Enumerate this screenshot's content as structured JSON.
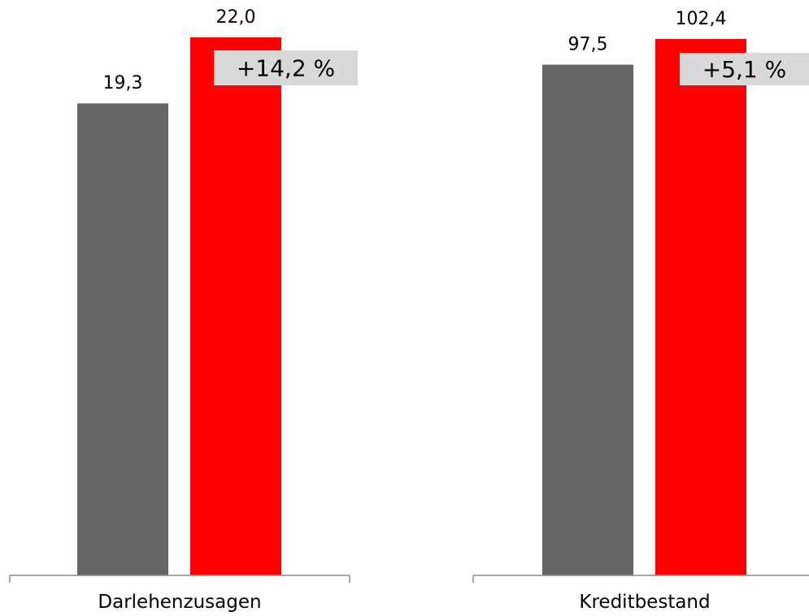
{
  "chart_data": [
    {
      "type": "bar",
      "category": "Darlehenzusagen",
      "values": [
        19.3,
        22.0
      ],
      "value_labels": [
        "19,3",
        "22,0"
      ],
      "change_label": "+14,2 %",
      "colors": [
        "#666666",
        "#ff0000"
      ]
    },
    {
      "type": "bar",
      "category": "Kreditbestand",
      "values": [
        97.5,
        102.4
      ],
      "value_labels": [
        "97,5",
        "102,4"
      ],
      "change_label": "+5,1 %",
      "colors": [
        "#666666",
        "#ff0000"
      ]
    }
  ],
  "colors": {
    "prior_bar": "#666666",
    "current_bar": "#ff0000",
    "badge_bg": "#d9d9d9",
    "axis": "#8c8c8c",
    "text": "#000000"
  }
}
